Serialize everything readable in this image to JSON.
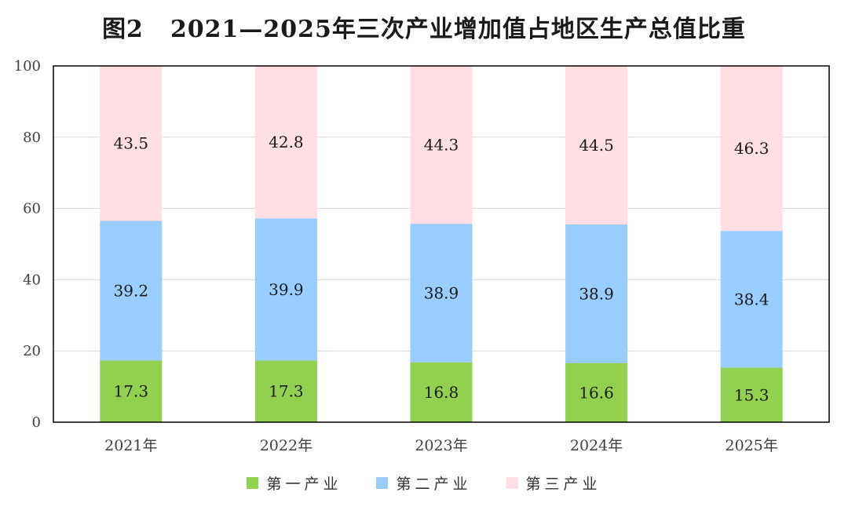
{
  "title": {
    "fig_no": "图2",
    "text": "2021—2025年三次产业增加值占地区生产总值比重"
  },
  "colors": {
    "primary": "#92d050",
    "secondary": "#99ccff",
    "tertiary": "#ffdfe3",
    "grid": "#d9d9d9",
    "frame": "#000000"
  },
  "chart_data": {
    "type": "bar",
    "stacked": true,
    "categories": [
      "2021年",
      "2022年",
      "2023年",
      "2024年",
      "2025年"
    ],
    "series": [
      {
        "name": "第一产业",
        "values": [
          17.3,
          17.3,
          16.8,
          16.6,
          15.3
        ]
      },
      {
        "name": "第二产业",
        "values": [
          39.2,
          39.9,
          38.9,
          38.9,
          38.4
        ]
      },
      {
        "name": "第三产业",
        "values": [
          43.5,
          42.8,
          44.3,
          44.5,
          46.3
        ]
      }
    ],
    "ylim": [
      0,
      100
    ],
    "yticks": [
      0,
      20,
      40,
      60,
      80,
      100
    ],
    "grid": true,
    "legend_position": "bottom",
    "data_labels": true
  }
}
